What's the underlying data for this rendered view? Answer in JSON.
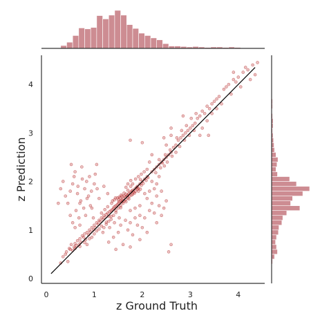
{
  "chart_data": {
    "type": "scatter",
    "xlabel": "z Ground Truth",
    "ylabel": "z Prediction",
    "xlim": [
      -0.1,
      4.55
    ],
    "ylim": [
      -0.1,
      4.6
    ],
    "xticks": [
      0,
      1,
      2,
      3,
      4
    ],
    "yticks": [
      0,
      1,
      2,
      3,
      4
    ],
    "grid": false,
    "legend": "none",
    "marginal_histograms": true,
    "reference_line": {
      "x": [
        0.1,
        4.35
      ],
      "y": [
        0.1,
        4.35
      ]
    },
    "colors": {
      "points": "#b22222",
      "histogram": "#cd8c92",
      "line": "#000000"
    },
    "x_hist": {
      "bin_width": 0.125,
      "bin_starts": [
        0.3,
        0.425,
        0.55,
        0.675,
        0.8,
        0.925,
        1.05,
        1.175,
        1.3,
        1.425,
        1.55,
        1.675,
        1.8,
        1.925,
        2.05,
        2.175,
        2.3,
        2.425,
        2.55,
        2.675,
        2.8,
        2.925,
        3.05,
        3.175,
        3.3,
        3.425,
        3.55,
        3.675,
        3.8,
        3.925,
        4.05,
        4.175,
        4.3
      ],
      "counts": [
        6,
        13,
        27,
        43,
        41,
        44,
        69,
        62,
        70,
        80,
        70,
        50,
        42,
        32,
        27,
        22,
        18,
        10,
        5,
        5,
        4,
        3,
        4,
        3,
        2,
        3,
        3,
        2,
        3,
        2,
        1,
        1,
        1
      ]
    },
    "y_hist": {
      "bin_width": 0.1,
      "bin_starts": [
        0.3,
        0.4,
        0.5,
        0.6,
        0.7,
        0.8,
        0.9,
        1.0,
        1.1,
        1.2,
        1.3,
        1.4,
        1.5,
        1.6,
        1.7,
        1.8,
        1.9,
        2.0,
        2.1,
        2.2,
        2.3,
        2.4,
        2.5,
        2.6,
        2.7,
        2.8,
        2.9,
        3.0,
        3.1,
        3.2,
        3.3,
        3.4,
        3.5,
        3.6,
        3.7,
        3.8,
        3.9,
        4.0,
        4.1,
        4.2,
        4.3,
        4.4
      ],
      "counts": [
        2,
        6,
        12,
        10,
        8,
        10,
        14,
        15,
        21,
        23,
        31,
        58,
        39,
        43,
        64,
        78,
        51,
        37,
        12,
        9,
        11,
        13,
        9,
        6,
        5,
        4,
        3,
        2,
        3,
        3,
        2,
        1,
        2,
        2,
        1,
        1,
        1,
        1,
        1,
        1,
        1,
        1
      ]
    },
    "points": [
      [
        0.3,
        0.32
      ],
      [
        0.35,
        0.45
      ],
      [
        0.42,
        0.55
      ],
      [
        0.45,
        0.35
      ],
      [
        0.48,
        0.62
      ],
      [
        0.52,
        0.7
      ],
      [
        0.55,
        0.58
      ],
      [
        0.58,
        0.65
      ],
      [
        0.6,
        0.72
      ],
      [
        0.62,
        0.68
      ],
      [
        0.65,
        0.78
      ],
      [
        0.68,
        0.7
      ],
      [
        0.7,
        0.82
      ],
      [
        0.72,
        0.75
      ],
      [
        0.75,
        0.88
      ],
      [
        0.78,
        0.85
      ],
      [
        0.8,
        0.92
      ],
      [
        0.82,
        0.8
      ],
      [
        0.85,
        0.95
      ],
      [
        0.88,
        0.9
      ],
      [
        0.9,
        1.0
      ],
      [
        0.92,
        0.96
      ],
      [
        0.95,
        1.05
      ],
      [
        0.98,
        1.0
      ],
      [
        1.0,
        1.1
      ],
      [
        1.02,
        1.05
      ],
      [
        1.05,
        1.15
      ],
      [
        1.08,
        1.12
      ],
      [
        1.1,
        1.2
      ],
      [
        1.12,
        1.18
      ],
      [
        1.15,
        1.25
      ],
      [
        1.18,
        1.22
      ],
      [
        1.2,
        1.3
      ],
      [
        1.22,
        1.26
      ],
      [
        1.25,
        1.32
      ],
      [
        1.28,
        1.35
      ],
      [
        1.3,
        1.28
      ],
      [
        1.32,
        1.38
      ],
      [
        1.35,
        1.4
      ],
      [
        1.38,
        1.42
      ],
      [
        1.4,
        1.45
      ],
      [
        1.42,
        1.48
      ],
      [
        1.45,
        1.5
      ],
      [
        1.48,
        1.52
      ],
      [
        1.5,
        1.55
      ],
      [
        1.52,
        1.58
      ],
      [
        1.55,
        1.6
      ],
      [
        1.58,
        1.62
      ],
      [
        1.6,
        1.65
      ],
      [
        1.62,
        1.6
      ],
      [
        1.65,
        1.68
      ],
      [
        1.68,
        1.7
      ],
      [
        1.7,
        1.72
      ],
      [
        1.72,
        1.75
      ],
      [
        1.75,
        1.78
      ],
      [
        1.78,
        1.8
      ],
      [
        1.8,
        1.82
      ],
      [
        1.82,
        1.78
      ],
      [
        1.85,
        1.85
      ],
      [
        1.88,
        1.88
      ],
      [
        1.9,
        1.9
      ],
      [
        1.92,
        1.86
      ],
      [
        1.95,
        1.95
      ],
      [
        1.98,
        1.92
      ],
      [
        2.0,
        2.0
      ],
      [
        2.02,
        1.96
      ],
      [
        2.05,
        2.05
      ],
      [
        2.08,
        2.02
      ],
      [
        2.1,
        2.1
      ],
      [
        2.12,
        2.08
      ],
      [
        1.2,
        1.05
      ],
      [
        1.25,
        1.12
      ],
      [
        1.3,
        1.18
      ],
      [
        1.35,
        1.22
      ],
      [
        1.4,
        1.3
      ],
      [
        1.45,
        1.36
      ],
      [
        1.5,
        1.45
      ],
      [
        1.55,
        1.5
      ],
      [
        1.6,
        1.55
      ],
      [
        1.65,
        1.62
      ],
      [
        1.15,
        1.35
      ],
      [
        1.22,
        1.42
      ],
      [
        1.28,
        1.48
      ],
      [
        1.36,
        1.55
      ],
      [
        1.42,
        1.62
      ],
      [
        1.48,
        1.66
      ],
      [
        1.56,
        1.72
      ],
      [
        1.62,
        1.76
      ],
      [
        1.7,
        1.82
      ],
      [
        1.76,
        1.9
      ],
      [
        1.38,
        1.6
      ],
      [
        1.44,
        1.66
      ],
      [
        1.52,
        1.68
      ],
      [
        1.58,
        1.7
      ],
      [
        1.66,
        1.58
      ],
      [
        1.72,
        1.64
      ],
      [
        1.78,
        1.72
      ],
      [
        1.84,
        1.76
      ],
      [
        1.92,
        1.8
      ],
      [
        1.96,
        1.84
      ],
      [
        1.5,
        1.62
      ],
      [
        1.54,
        1.66
      ],
      [
        1.58,
        1.58
      ],
      [
        1.62,
        1.7
      ],
      [
        1.66,
        1.74
      ],
      [
        1.7,
        1.66
      ],
      [
        1.74,
        1.7
      ],
      [
        1.8,
        1.74
      ],
      [
        1.86,
        1.8
      ],
      [
        1.9,
        1.84
      ],
      [
        0.55,
        1.95
      ],
      [
        0.6,
        2.2
      ],
      [
        0.65,
        1.75
      ],
      [
        0.7,
        1.55
      ],
      [
        0.75,
        2.05
      ],
      [
        0.8,
        1.85
      ],
      [
        0.85,
        1.65
      ],
      [
        0.9,
        2.1
      ],
      [
        0.95,
        1.45
      ],
      [
        1.0,
        1.95
      ],
      [
        0.45,
        1.55
      ],
      [
        0.5,
        1.8
      ],
      [
        0.62,
        1.4
      ],
      [
        0.68,
        1.25
      ],
      [
        0.72,
        1.6
      ],
      [
        0.78,
        1.45
      ],
      [
        0.82,
        1.3
      ],
      [
        0.88,
        1.7
      ],
      [
        0.92,
        1.5
      ],
      [
        0.98,
        1.25
      ],
      [
        0.58,
        2.1
      ],
      [
        0.66,
        1.9
      ],
      [
        0.74,
        2.3
      ],
      [
        0.84,
        2.0
      ],
      [
        0.94,
        1.8
      ],
      [
        1.02,
        2.15
      ],
      [
        1.1,
        1.65
      ],
      [
        1.06,
        1.85
      ],
      [
        0.3,
        1.85
      ],
      [
        0.35,
        2.0
      ],
      [
        0.4,
        1.7
      ],
      [
        0.5,
        1.3
      ],
      [
        0.55,
        1.15
      ],
      [
        0.52,
        2.35
      ],
      [
        0.25,
        1.55
      ],
      [
        1.05,
        2.35
      ],
      [
        1.2,
        1.9
      ],
      [
        1.28,
        1.75
      ],
      [
        0.6,
        1.05
      ],
      [
        0.7,
        1.1
      ],
      [
        1.3,
        0.75
      ],
      [
        1.4,
        0.85
      ],
      [
        1.5,
        0.95
      ],
      [
        1.6,
        0.7
      ],
      [
        1.7,
        1.0
      ],
      [
        1.8,
        0.9
      ],
      [
        1.9,
        1.1
      ],
      [
        2.0,
        1.05
      ],
      [
        2.1,
        0.95
      ],
      [
        1.55,
        1.1
      ],
      [
        1.65,
        1.2
      ],
      [
        1.75,
        1.15
      ],
      [
        1.85,
        1.25
      ],
      [
        1.95,
        1.3
      ],
      [
        2.05,
        1.25
      ],
      [
        2.15,
        1.4
      ],
      [
        2.25,
        1.35
      ],
      [
        2.35,
        1.5
      ],
      [
        2.45,
        1.45
      ],
      [
        2.2,
        1.55
      ],
      [
        1.45,
        0.6
      ],
      [
        1.75,
        0.65
      ],
      [
        1.95,
        0.8
      ],
      [
        2.3,
        1.15
      ],
      [
        2.4,
        1.3
      ],
      [
        2.5,
        1.6
      ],
      [
        2.6,
        0.7
      ],
      [
        2.55,
        0.55
      ],
      [
        2.4,
        1.8
      ],
      [
        2.3,
        1.95
      ],
      [
        2.2,
        2.2
      ],
      [
        2.25,
        2.25
      ],
      [
        2.3,
        2.3
      ],
      [
        2.35,
        2.35
      ],
      [
        2.4,
        2.4
      ],
      [
        2.45,
        2.45
      ],
      [
        2.5,
        2.5
      ],
      [
        2.55,
        2.55
      ],
      [
        2.6,
        2.6
      ],
      [
        2.35,
        2.45
      ],
      [
        2.42,
        2.38
      ],
      [
        2.48,
        2.55
      ],
      [
        2.52,
        2.4
      ],
      [
        2.58,
        2.65
      ],
      [
        2.62,
        2.52
      ],
      [
        2.28,
        2.18
      ],
      [
        2.38,
        2.28
      ],
      [
        2.46,
        2.32
      ],
      [
        2.15,
        2.4
      ],
      [
        2.2,
        2.55
      ],
      [
        2.65,
        2.7
      ],
      [
        2.7,
        2.75
      ],
      [
        2.75,
        2.85
      ],
      [
        2.8,
        2.9
      ],
      [
        2.85,
        2.95
      ],
      [
        2.9,
        3.0
      ],
      [
        2.95,
        3.05
      ],
      [
        3.0,
        3.1
      ],
      [
        3.05,
        3.15
      ],
      [
        3.1,
        3.2
      ],
      [
        2.7,
        2.6
      ],
      [
        2.78,
        2.72
      ],
      [
        2.88,
        2.85
      ],
      [
        2.98,
        2.95
      ],
      [
        3.08,
        3.05
      ],
      [
        2.72,
        2.9
      ],
      [
        2.82,
        3.05
      ],
      [
        2.92,
        3.15
      ],
      [
        3.02,
        3.3
      ],
      [
        3.12,
        3.4
      ],
      [
        3.15,
        3.3
      ],
      [
        3.2,
        3.35
      ],
      [
        3.25,
        3.45
      ],
      [
        3.3,
        3.4
      ],
      [
        3.35,
        3.55
      ],
      [
        3.4,
        3.5
      ],
      [
        3.45,
        3.6
      ],
      [
        3.5,
        3.65
      ],
      [
        3.55,
        3.7
      ],
      [
        3.6,
        3.75
      ],
      [
        3.25,
        3.1
      ],
      [
        3.35,
        3.25
      ],
      [
        3.45,
        3.4
      ],
      [
        3.55,
        3.5
      ],
      [
        3.65,
        3.6
      ],
      [
        3.2,
        2.95
      ],
      [
        2.6,
        2.95
      ],
      [
        2.5,
        2.75
      ],
      [
        2.45,
        2.9
      ],
      [
        3.38,
        2.95
      ],
      [
        3.7,
        3.9
      ],
      [
        3.8,
        4.0
      ],
      [
        3.9,
        4.1
      ],
      [
        4.0,
        4.15
      ],
      [
        4.1,
        4.25
      ],
      [
        4.2,
        4.3
      ],
      [
        4.3,
        4.4
      ],
      [
        4.35,
        4.2
      ],
      [
        3.85,
        3.8
      ],
      [
        3.95,
        4.05
      ],
      [
        4.05,
        3.95
      ],
      [
        4.15,
        4.35
      ],
      [
        4.25,
        4.1
      ],
      [
        3.75,
        3.95
      ],
      [
        4.4,
        4.45
      ],
      [
        3.9,
        4.25
      ],
      [
        2.6,
        3.1
      ],
      [
        2.85,
        3.35
      ],
      [
        1.75,
        2.85
      ],
      [
        2.0,
        2.8
      ],
      [
        1.8,
        1.95
      ],
      [
        1.86,
        2.05
      ],
      [
        1.92,
        2.1
      ],
      [
        1.98,
        2.15
      ],
      [
        2.04,
        2.2
      ],
      [
        2.1,
        2.25
      ],
      [
        1.7,
        1.95
      ],
      [
        1.76,
        2.02
      ],
      [
        1.66,
        1.88
      ],
      [
        1.96,
        2.04
      ],
      [
        2.25,
        1.85
      ],
      [
        2.3,
        1.7
      ],
      [
        2.35,
        2.1
      ],
      [
        2.05,
        1.75
      ],
      [
        2.1,
        1.65
      ],
      [
        1.95,
        1.5
      ],
      [
        1.85,
        1.45
      ],
      [
        1.75,
        1.4
      ],
      [
        2.15,
        1.8
      ],
      [
        2.2,
        2.0
      ],
      [
        0.4,
        0.5
      ],
      [
        0.5,
        0.6
      ],
      [
        0.6,
        0.62
      ],
      [
        0.7,
        0.66
      ],
      [
        0.8,
        0.74
      ],
      [
        0.9,
        0.82
      ],
      [
        1.0,
        0.92
      ],
      [
        1.1,
        1.02
      ],
      [
        0.85,
        0.7
      ],
      [
        0.95,
        0.85
      ],
      [
        1.05,
        0.98
      ],
      [
        1.15,
        1.08
      ],
      [
        1.25,
        1.16
      ],
      [
        1.35,
        1.28
      ],
      [
        1.45,
        1.4
      ],
      [
        1.55,
        1.46
      ],
      [
        1.18,
        0.95
      ],
      [
        1.32,
        1.05
      ],
      [
        1.42,
        1.15
      ],
      [
        1.52,
        1.25
      ]
    ]
  }
}
